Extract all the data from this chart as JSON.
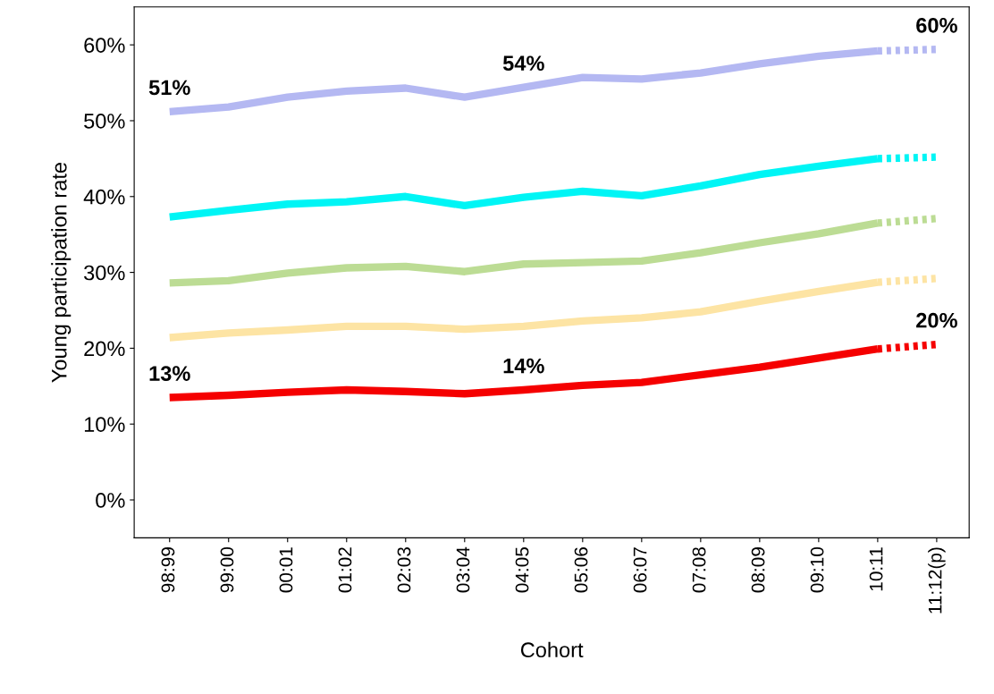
{
  "chart_data": {
    "type": "line",
    "xlabel": "Cohort",
    "ylabel": "Young participation rate",
    "categories": [
      "98:99",
      "99:00",
      "00:01",
      "01:02",
      "02:03",
      "03:04",
      "04:05",
      "05:06",
      "06:07",
      "07:08",
      "08:09",
      "09:10",
      "10:11",
      "11:12(p)"
    ],
    "ylim": [
      -5,
      65
    ],
    "yticks": [
      {
        "value": 0,
        "label": "0%"
      },
      {
        "value": 10,
        "label": "10%"
      },
      {
        "value": 20,
        "label": "20%"
      },
      {
        "value": 30,
        "label": "30%"
      },
      {
        "value": 40,
        "label": "40%"
      },
      {
        "value": 50,
        "label": "50%"
      },
      {
        "value": 60,
        "label": "60%"
      }
    ],
    "grid": false,
    "marker": "none",
    "series": [
      {
        "color": "#b4b8f2",
        "line_style": "solid",
        "values": [
          51.2,
          51.8,
          53.1,
          53.9,
          54.3,
          53.1,
          54.4,
          55.7,
          55.5,
          56.3,
          57.5,
          58.5,
          59.2,
          null
        ]
      },
      {
        "color": "#b4b8f2",
        "line_style": "dotted",
        "values": [
          null,
          null,
          null,
          null,
          null,
          null,
          null,
          null,
          null,
          null,
          null,
          null,
          59.2,
          59.4
        ]
      },
      {
        "color": "#00f5f5",
        "line_style": "solid",
        "values": [
          37.3,
          38.2,
          39.0,
          39.3,
          40.0,
          38.8,
          39.9,
          40.7,
          40.1,
          41.4,
          42.9,
          44.0,
          45.0,
          null
        ]
      },
      {
        "color": "#00f5f5",
        "line_style": "dotted",
        "values": [
          null,
          null,
          null,
          null,
          null,
          null,
          null,
          null,
          null,
          null,
          null,
          null,
          45.0,
          45.2
        ]
      },
      {
        "color": "#bcdc94",
        "line_style": "solid",
        "values": [
          28.6,
          28.9,
          29.9,
          30.6,
          30.8,
          30.1,
          31.1,
          31.3,
          31.5,
          32.6,
          33.9,
          35.1,
          36.5,
          null
        ]
      },
      {
        "color": "#bcdc94",
        "line_style": "dotted",
        "values": [
          null,
          null,
          null,
          null,
          null,
          null,
          null,
          null,
          null,
          null,
          null,
          null,
          36.5,
          37.1
        ]
      },
      {
        "color": "#fde4a4",
        "line_style": "solid",
        "values": [
          21.4,
          22.0,
          22.4,
          22.9,
          22.9,
          22.5,
          22.9,
          23.6,
          24.0,
          24.8,
          26.2,
          27.5,
          28.7,
          null
        ]
      },
      {
        "color": "#fde4a4",
        "line_style": "dotted",
        "values": [
          null,
          null,
          null,
          null,
          null,
          null,
          null,
          null,
          null,
          null,
          null,
          null,
          28.7,
          29.2
        ]
      },
      {
        "color": "#f50000",
        "line_style": "solid",
        "values": [
          13.5,
          13.8,
          14.2,
          14.5,
          14.3,
          14.0,
          14.5,
          15.1,
          15.5,
          16.5,
          17.5,
          18.7,
          19.9,
          null
        ]
      },
      {
        "color": "#f50000",
        "line_style": "dotted",
        "values": [
          null,
          null,
          null,
          null,
          null,
          null,
          null,
          null,
          null,
          null,
          null,
          null,
          19.9,
          20.5
        ]
      }
    ],
    "annotations": [
      {
        "text": "51%",
        "x": "98:99",
        "y": 51.2
      },
      {
        "text": "54%",
        "x": "04:05",
        "y": 54.4
      },
      {
        "text": "60%",
        "x": "11:12(p)",
        "y": 59.4
      },
      {
        "text": "13%",
        "x": "98:99",
        "y": 13.5
      },
      {
        "text": "14%",
        "x": "04:05",
        "y": 14.5
      },
      {
        "text": "20%",
        "x": "11:12(p)",
        "y": 20.5
      }
    ]
  }
}
